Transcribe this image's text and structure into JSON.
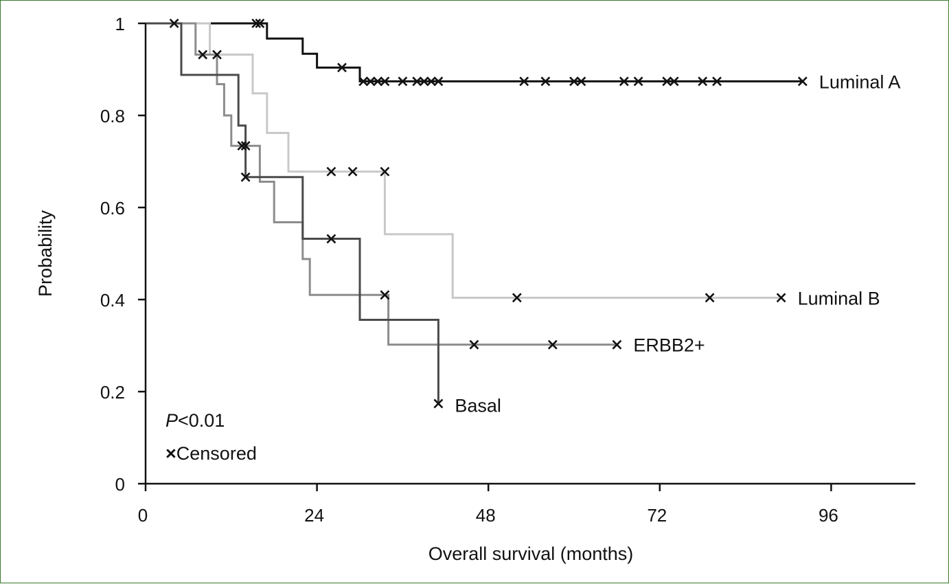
{
  "chart_data": {
    "type": "line",
    "step": true,
    "xlabel": "Overall survival (months)",
    "ylabel": "Probability",
    "xlim": [
      0,
      108
    ],
    "ylim": [
      0,
      1
    ],
    "xticks": [
      0,
      24,
      48,
      72,
      96
    ],
    "xtick_labels": [
      "0",
      "24",
      "48",
      "72",
      "96"
    ],
    "yticks": [
      0,
      0.2,
      0.4,
      0.6,
      0.8,
      1
    ],
    "ytick_labels": [
      "0",
      "0.2",
      "0.4",
      "0.6",
      "0.8",
      "1"
    ],
    "grid": false,
    "annotations": {
      "p_italic": "P",
      "p_rest": "<0.01",
      "censored_marker": "×",
      "censored_label": "Censored"
    },
    "series": [
      {
        "name": "Luminal A",
        "color": "#111111",
        "steps": [
          [
            0,
            1
          ],
          [
            17,
            0.967
          ],
          [
            22,
            0.934
          ],
          [
            24,
            0.904
          ],
          [
            30,
            0.874
          ],
          [
            92,
            0.874
          ]
        ],
        "censored": [
          [
            4,
            1
          ],
          [
            15.5,
            1
          ],
          [
            16,
            1
          ],
          [
            27.5,
            0.904
          ],
          [
            30.5,
            0.874
          ],
          [
            31.5,
            0.874
          ],
          [
            32.5,
            0.874
          ],
          [
            33.5,
            0.874
          ],
          [
            36,
            0.874
          ],
          [
            38,
            0.874
          ],
          [
            39,
            0.874
          ],
          [
            40,
            0.874
          ],
          [
            41,
            0.874
          ],
          [
            53,
            0.874
          ],
          [
            56,
            0.874
          ],
          [
            60,
            0.874
          ],
          [
            61,
            0.874
          ],
          [
            67,
            0.874
          ],
          [
            69,
            0.874
          ],
          [
            73,
            0.874
          ],
          [
            74,
            0.874
          ],
          [
            78,
            0.874
          ],
          [
            80,
            0.874
          ],
          [
            92,
            0.874
          ]
        ]
      },
      {
        "name": "Luminal B",
        "color": "#c8c8c8",
        "steps": [
          [
            0,
            1
          ],
          [
            9,
            0.932
          ],
          [
            15,
            0.848
          ],
          [
            17,
            0.762
          ],
          [
            20,
            0.678
          ],
          [
            33.5,
            0.542
          ],
          [
            43,
            0.404
          ],
          [
            89,
            0.404
          ]
        ],
        "censored": [
          [
            26,
            0.678
          ],
          [
            29,
            0.678
          ],
          [
            33.5,
            0.678
          ],
          [
            52,
            0.404
          ],
          [
            79,
            0.404
          ],
          [
            89,
            0.404
          ]
        ]
      },
      {
        "name": "ERBB2+",
        "color": "#8c8c8c",
        "steps": [
          [
            0,
            1
          ],
          [
            7,
            0.932
          ],
          [
            10,
            0.868
          ],
          [
            11,
            0.8
          ],
          [
            12,
            0.734
          ],
          [
            16,
            0.656
          ],
          [
            18,
            0.568
          ],
          [
            22,
            0.488
          ],
          [
            23,
            0.41
          ],
          [
            34,
            0.302
          ],
          [
            66,
            0.302
          ]
        ],
        "censored": [
          [
            8,
            0.932
          ],
          [
            10,
            0.932
          ],
          [
            14,
            0.734
          ],
          [
            46,
            0.302
          ],
          [
            57,
            0.302
          ],
          [
            66,
            0.302
          ]
        ]
      },
      {
        "name": "Basal",
        "color": "#4a4a4a",
        "steps": [
          [
            0,
            1
          ],
          [
            5,
            0.888
          ],
          [
            13,
            0.778
          ],
          [
            14,
            0.666
          ],
          [
            22,
            0.532
          ],
          [
            30,
            0.356
          ],
          [
            41,
            0.174
          ]
        ],
        "censored": [
          [
            13.5,
            0.734
          ],
          [
            14,
            0.666
          ],
          [
            26,
            0.532
          ],
          [
            33.5,
            0.41
          ],
          [
            41,
            0.174
          ]
        ]
      }
    ]
  }
}
